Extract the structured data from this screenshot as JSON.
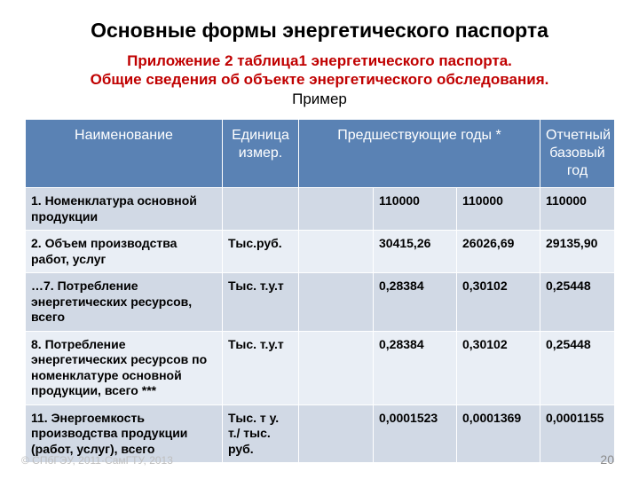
{
  "title": "Основные формы энергетического паспорта",
  "subtitle": {
    "line1": "Приложение 2 таблица1 энергетического паспорта.",
    "line2": "Общие сведения об объекте энергетического обследования.",
    "line3": "Пример"
  },
  "table": {
    "headers": {
      "name": "Наименование",
      "unit": "Единица измер.",
      "prev_years": "Предшествующие годы *",
      "base_year": "Отчетный базовый год"
    },
    "rows": [
      {
        "name": "1. Номенклатура основной продукции",
        "unit": "",
        "blank": "",
        "v1": "110000",
        "v2": "110000",
        "v3": "110000"
      },
      {
        "name": "2. Объем производства работ, услуг",
        "unit": "Тыс.руб.",
        "blank": "",
        "v1": "30415,26",
        "v2": "26026,69",
        "v3": "29135,90"
      },
      {
        "name": "…7. Потребление энергетических ресурсов, всего",
        "unit": "Тыс. т.у.т",
        "blank": "",
        "v1": "0,28384",
        "v2": "0,30102",
        "v3": "0,25448"
      },
      {
        "name": "8. Потребление энергетических ресурсов по номенклатуре основной продукции, всего ***",
        "unit": "Тыс. т.у.т",
        "blank": "",
        "v1": "0,28384",
        "v2": "0,30102",
        "v3": "0,25448"
      },
      {
        "name": "11. Энергоемкость производства продукции (работ, услуг), всего",
        "unit": "Тыс. т у. т./ тыс. руб.",
        "blank": "",
        "v1": "0,0001523",
        "v2": "0,0001369",
        "v3": "0,0001155"
      }
    ]
  },
  "footer": {
    "left": "© СПбГЭУ, 2011·СамГТУ, 2013",
    "slide_number": "20"
  },
  "colors": {
    "title": "#000000",
    "accent": "#c00000",
    "header_bg": "#5a82b4",
    "row_odd": "#d1d9e5",
    "row_even": "#e9eef5",
    "footer_light": "#bfbfbf",
    "footer_num": "#8c8c8c",
    "background": "#ffffff"
  }
}
